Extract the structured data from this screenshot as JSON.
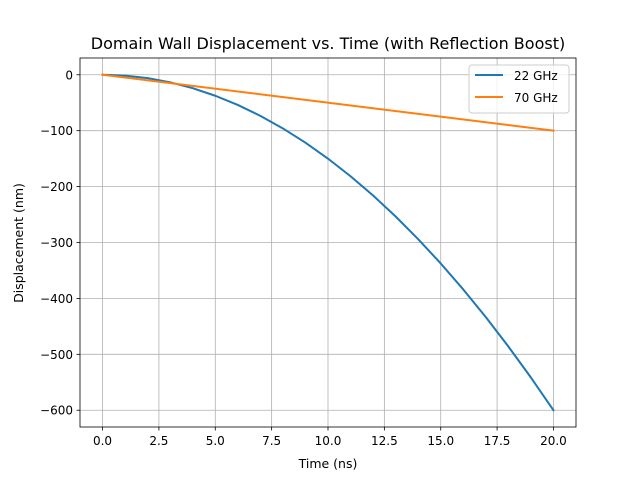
{
  "chart_data": {
    "type": "line",
    "title": "Domain Wall Displacement vs. Time (with Reflection Boost)",
    "xlabel": "Time (ns)",
    "ylabel": "Displacement (nm)",
    "xlim": [
      -1.0,
      21.0
    ],
    "ylim": [
      -630,
      30
    ],
    "xticks": [
      0.0,
      2.5,
      5.0,
      7.5,
      10.0,
      12.5,
      15.0,
      17.5,
      20.0
    ],
    "xtick_labels": [
      "0.0",
      "2.5",
      "5.0",
      "7.5",
      "10.0",
      "12.5",
      "15.0",
      "17.5",
      "20.0"
    ],
    "yticks": [
      0,
      -100,
      -200,
      -300,
      -400,
      -500,
      -600
    ],
    "ytick_labels": [
      "0",
      "−100",
      "−200",
      "−300",
      "−400",
      "−500",
      "−600"
    ],
    "grid": true,
    "legend_position": "top-right",
    "series": [
      {
        "name": "22 GHz",
        "color": "#1f77b4",
        "x": [
          0,
          1,
          2,
          3,
          4,
          5,
          6,
          7,
          8,
          9,
          10,
          11,
          12,
          13,
          14,
          15,
          16,
          17,
          18,
          19,
          20
        ],
        "y": [
          0,
          -1.5,
          -6,
          -13.5,
          -24,
          -37.5,
          -54,
          -73.5,
          -96,
          -121.5,
          -150,
          -181.5,
          -216,
          -253.5,
          -294,
          -337.5,
          -384,
          -433.5,
          -486,
          -541.5,
          -600
        ]
      },
      {
        "name": "70 GHz",
        "color": "#ff7f0e",
        "x": [
          0,
          20
        ],
        "y": [
          0,
          -100
        ]
      }
    ]
  }
}
